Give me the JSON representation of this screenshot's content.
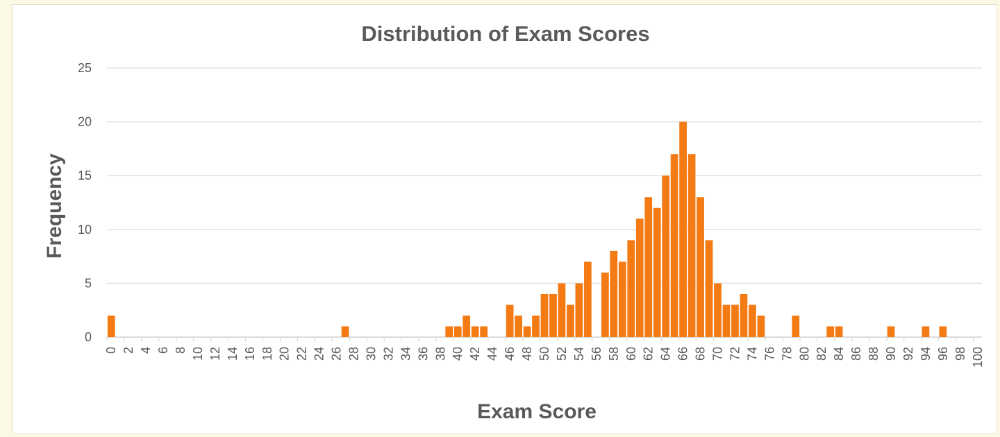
{
  "chart_data": {
    "type": "bar",
    "title": "Distribution of Exam Scores",
    "xlabel": "Exam Score",
    "ylabel": "Frequency",
    "ylim": [
      0,
      25
    ],
    "yticks": [
      0,
      5,
      10,
      15,
      20,
      25
    ],
    "xticks": [
      0,
      2,
      4,
      6,
      8,
      10,
      12,
      14,
      16,
      18,
      20,
      22,
      24,
      26,
      28,
      30,
      32,
      34,
      36,
      38,
      40,
      42,
      44,
      46,
      48,
      50,
      52,
      54,
      56,
      58,
      60,
      62,
      64,
      66,
      68,
      70,
      72,
      74,
      76,
      78,
      80,
      82,
      84,
      86,
      88,
      90,
      92,
      94,
      96,
      98,
      100
    ],
    "grid": true,
    "bar_color": "#f47a14",
    "x": [
      0,
      27,
      39,
      40,
      41,
      42,
      43,
      46,
      47,
      48,
      49,
      50,
      51,
      52,
      53,
      54,
      55,
      57,
      58,
      59,
      60,
      61,
      62,
      63,
      64,
      65,
      66,
      67,
      68,
      69,
      70,
      71,
      72,
      73,
      74,
      75,
      79,
      83,
      84,
      90,
      94,
      96
    ],
    "values": [
      2,
      1,
      1,
      1,
      2,
      1,
      1,
      3,
      2,
      1,
      2,
      4,
      4,
      5,
      3,
      5,
      7,
      6,
      8,
      7,
      9,
      11,
      13,
      12,
      15,
      17,
      20,
      17,
      13,
      9,
      5,
      3,
      3,
      4,
      3,
      2,
      2,
      1,
      1,
      1,
      1,
      1
    ]
  }
}
